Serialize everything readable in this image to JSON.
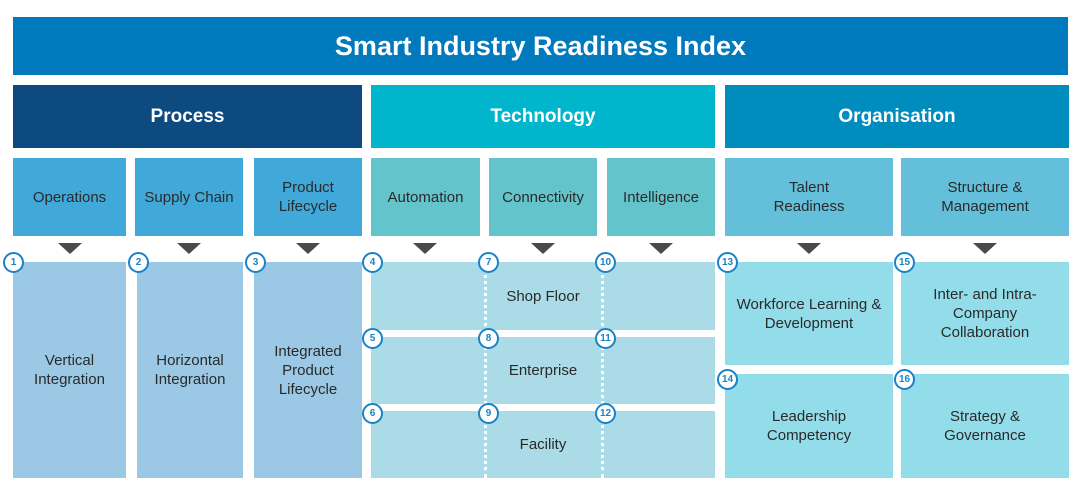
{
  "title": "Smart Industry Readiness Index",
  "categories": {
    "process": "Process",
    "technology": "Technology",
    "organisation": "Organisation"
  },
  "dimensions": [
    "Operations",
    "Supply Chain",
    "Product Lifecycle",
    "Automation",
    "Connectivity",
    "Intelligence",
    "Talent Readiness",
    "Structure & Management"
  ],
  "pillars": {
    "process": [
      "Vertical Integration",
      "Horizontal Integration",
      "Integrated Product Lifecycle"
    ],
    "technology": [
      "Shop Floor",
      "Enterprise",
      "Facility"
    ],
    "organisation": [
      "Workforce Learning & Development",
      "Inter- and Intra-Company Collaboration",
      "Leadership Competency",
      "Strategy & Governance"
    ]
  },
  "numbers": [
    "1",
    "2",
    "3",
    "4",
    "5",
    "6",
    "7",
    "8",
    "9",
    "10",
    "11",
    "12",
    "13",
    "14",
    "15",
    "16"
  ],
  "colors": {
    "title": "#0079bd",
    "process": "#0d4a80",
    "technology": "#00b5cc",
    "organisation": "#008cbc"
  }
}
